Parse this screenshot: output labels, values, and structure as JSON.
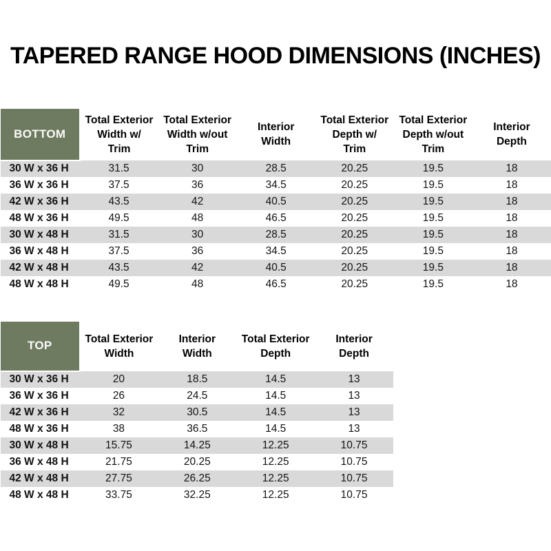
{
  "page": {
    "title": "TAPERED RANGE HOOD DIMENSIONS (INCHES)"
  },
  "colors": {
    "section_header_green": "#6f7b61",
    "row_stripe_gray": "#d9d9d9",
    "section_header_text": "#fbfbf8"
  },
  "tables": [
    {
      "section_label": "BOTTOM",
      "columns": [
        "Total Exterior\nWidth w/\nTrim",
        "Total Exterior\nWidth w/out\nTrim",
        "Interior\nWidth",
        "Total Exterior\nDepth w/\nTrim",
        "Total Exterior\nDepth w/out\nTrim",
        "Interior\nDepth"
      ],
      "rows": [
        {
          "label": "30 W x 36 H",
          "values": [
            "31.5",
            "30",
            "28.5",
            "20.25",
            "19.5",
            "18"
          ]
        },
        {
          "label": "36 W x 36 H",
          "values": [
            "37.5",
            "36",
            "34.5",
            "20.25",
            "19.5",
            "18"
          ]
        },
        {
          "label": "42 W x 36 H",
          "values": [
            "43.5",
            "42",
            "40.5",
            "20.25",
            "19.5",
            "18"
          ]
        },
        {
          "label": "48 W x 36 H",
          "values": [
            "49.5",
            "48",
            "46.5",
            "20.25",
            "19.5",
            "18"
          ]
        },
        {
          "label": "30 W x 48 H",
          "values": [
            "31.5",
            "30",
            "28.5",
            "20.25",
            "19.5",
            "18"
          ]
        },
        {
          "label": "36 W x 48 H",
          "values": [
            "37.5",
            "36",
            "34.5",
            "20.25",
            "19.5",
            "18"
          ]
        },
        {
          "label": "42 W x 48 H",
          "values": [
            "43.5",
            "42",
            "40.5",
            "20.25",
            "19.5",
            "18"
          ]
        },
        {
          "label": "48 W x 48 H",
          "values": [
            "49.5",
            "48",
            "46.5",
            "20.25",
            "19.5",
            "18"
          ]
        }
      ]
    },
    {
      "section_label": "TOP",
      "columns": [
        "Total Exterior\nWidth",
        "Interior\nWidth",
        "Total Exterior\nDepth",
        "Interior\nDepth"
      ],
      "rows": [
        {
          "label": "30 W x 36 H",
          "values": [
            "20",
            "18.5",
            "14.5",
            "13"
          ]
        },
        {
          "label": "36 W x 36 H",
          "values": [
            "26",
            "24.5",
            "14.5",
            "13"
          ]
        },
        {
          "label": "42 W x 36 H",
          "values": [
            "32",
            "30.5",
            "14.5",
            "13"
          ]
        },
        {
          "label": "48 W x 36 H",
          "values": [
            "38",
            "36.5",
            "14.5",
            "13"
          ]
        },
        {
          "label": "30 W x 48 H",
          "values": [
            "15.75",
            "14.25",
            "12.25",
            "10.75"
          ]
        },
        {
          "label": "36 W x 48 H",
          "values": [
            "21.75",
            "20.25",
            "12.25",
            "10.75"
          ]
        },
        {
          "label": "42 W x 48 H",
          "values": [
            "27.75",
            "26.25",
            "12.25",
            "10.75"
          ]
        },
        {
          "label": "48 W x 48 H",
          "values": [
            "33.75",
            "32.25",
            "12.25",
            "10.75"
          ]
        }
      ]
    }
  ]
}
